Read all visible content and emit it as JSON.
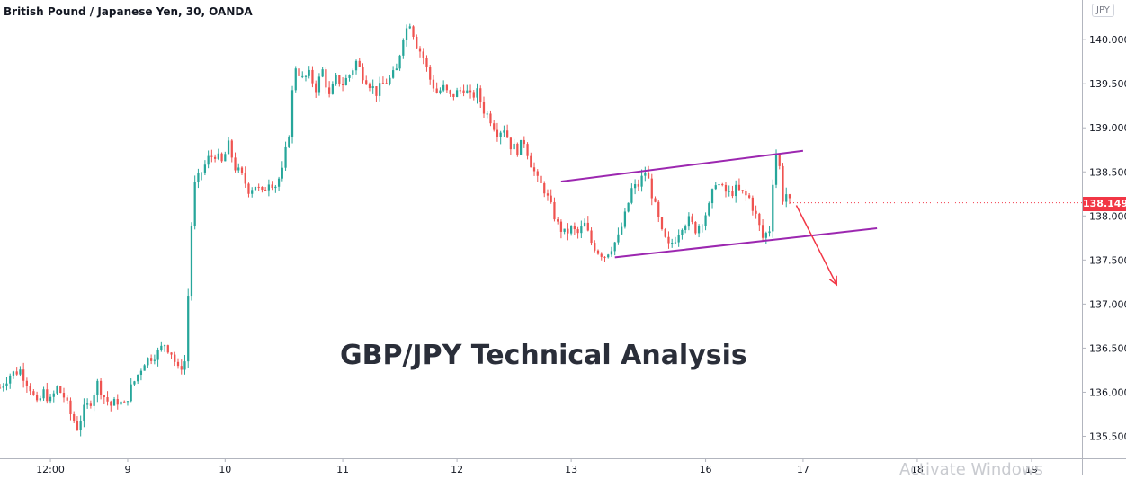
{
  "chart_data": {
    "type": "candlestick",
    "title": "British Pound / Japanese Yen, 30, OANDA",
    "annotation": "GBP/JPY Technical Analysis",
    "currency": "JPY",
    "last_price": "138.149",
    "ylim": [
      135.25,
      140.45
    ],
    "y_ticks": [
      "140.000",
      "139.500",
      "139.000",
      "138.500",
      "138.000",
      "137.500",
      "137.000",
      "136.500",
      "136.000",
      "135.500"
    ],
    "y_tick_values": [
      140.0,
      139.5,
      139.0,
      138.5,
      138.0,
      137.5,
      137.0,
      136.5,
      136.0,
      135.5
    ],
    "x_ticks": [
      {
        "label": "12:00",
        "bar": 15
      },
      {
        "label": "9",
        "bar": 38
      },
      {
        "label": "10",
        "bar": 67
      },
      {
        "label": "11",
        "bar": 102
      },
      {
        "label": "12",
        "bar": 136
      },
      {
        "label": "13",
        "bar": 170
      },
      {
        "label": "16",
        "bar": 210
      },
      {
        "label": "17",
        "bar": 239
      },
      {
        "label": "18",
        "bar": 273
      },
      {
        "label": "19",
        "bar": 307
      }
    ],
    "x_bars": [
      0,
      322
    ],
    "price_path": [
      [
        0,
        136.05
      ],
      [
        3,
        136.2
      ],
      [
        6,
        136.25
      ],
      [
        9,
        136.05
      ],
      [
        11,
        135.85
      ],
      [
        13,
        136.0
      ],
      [
        15,
        135.9
      ],
      [
        17,
        136.05
      ],
      [
        19,
        135.95
      ],
      [
        21,
        135.75
      ],
      [
        23,
        135.6
      ],
      [
        25,
        135.8
      ],
      [
        27,
        135.9
      ],
      [
        29,
        136.1
      ],
      [
        31,
        135.95
      ],
      [
        33,
        135.85
      ],
      [
        35,
        135.9
      ],
      [
        37,
        135.85
      ],
      [
        39,
        136.05
      ],
      [
        41,
        136.2
      ],
      [
        43,
        136.35
      ],
      [
        45,
        136.4
      ],
      [
        47,
        136.45
      ],
      [
        49,
        136.55
      ],
      [
        51,
        136.45
      ],
      [
        53,
        136.25
      ],
      [
        55,
        136.35
      ],
      [
        56,
        137.1
      ],
      [
        57,
        137.9
      ],
      [
        58,
        138.35
      ],
      [
        60,
        138.5
      ],
      [
        62,
        138.65
      ],
      [
        64,
        138.7
      ],
      [
        66,
        138.6
      ],
      [
        68,
        138.8
      ],
      [
        70,
        138.55
      ],
      [
        72,
        138.45
      ],
      [
        74,
        138.3
      ],
      [
        76,
        138.35
      ],
      [
        78,
        138.25
      ],
      [
        80,
        138.4
      ],
      [
        82,
        138.35
      ],
      [
        84,
        138.5
      ],
      [
        86,
        138.95
      ],
      [
        87,
        139.4
      ],
      [
        88,
        139.7
      ],
      [
        90,
        139.55
      ],
      [
        92,
        139.6
      ],
      [
        94,
        139.45
      ],
      [
        96,
        139.65
      ],
      [
        98,
        139.35
      ],
      [
        100,
        139.55
      ],
      [
        102,
        139.5
      ],
      [
        104,
        139.6
      ],
      [
        106,
        139.75
      ],
      [
        108,
        139.6
      ],
      [
        110,
        139.5
      ],
      [
        112,
        139.4
      ],
      [
        114,
        139.5
      ],
      [
        116,
        139.55
      ],
      [
        118,
        139.65
      ],
      [
        120,
        140.05
      ],
      [
        122,
        140.2
      ],
      [
        124,
        139.95
      ],
      [
        126,
        139.8
      ],
      [
        128,
        139.55
      ],
      [
        130,
        139.4
      ],
      [
        132,
        139.45
      ],
      [
        134,
        139.35
      ],
      [
        136,
        139.4
      ],
      [
        138,
        139.45
      ],
      [
        140,
        139.35
      ],
      [
        142,
        139.4
      ],
      [
        144,
        139.2
      ],
      [
        146,
        139.1
      ],
      [
        148,
        138.95
      ],
      [
        150,
        139.0
      ],
      [
        152,
        138.8
      ],
      [
        154,
        138.75
      ],
      [
        156,
        138.85
      ],
      [
        158,
        138.6
      ],
      [
        160,
        138.4
      ],
      [
        162,
        138.3
      ],
      [
        164,
        138.1
      ],
      [
        166,
        137.9
      ],
      [
        168,
        137.8
      ],
      [
        170,
        137.85
      ],
      [
        172,
        137.8
      ],
      [
        174,
        137.9
      ],
      [
        176,
        137.7
      ],
      [
        178,
        137.6
      ],
      [
        180,
        137.55
      ],
      [
        182,
        137.65
      ],
      [
        184,
        137.75
      ],
      [
        186,
        138.0
      ],
      [
        188,
        138.3
      ],
      [
        190,
        138.35
      ],
      [
        192,
        138.5
      ],
      [
        193,
        138.4
      ],
      [
        195,
        138.1
      ],
      [
        197,
        137.8
      ],
      [
        199,
        137.65
      ],
      [
        201,
        137.75
      ],
      [
        203,
        137.9
      ],
      [
        205,
        137.95
      ],
      [
        207,
        137.85
      ],
      [
        209,
        137.95
      ],
      [
        211,
        138.1
      ],
      [
        213,
        138.4
      ],
      [
        215,
        138.3
      ],
      [
        217,
        138.25
      ],
      [
        219,
        138.3
      ],
      [
        221,
        138.25
      ],
      [
        223,
        138.2
      ],
      [
        225,
        138.0
      ],
      [
        227,
        137.75
      ],
      [
        229,
        137.85
      ],
      [
        230,
        138.4
      ],
      [
        231,
        138.7
      ],
      [
        232,
        138.55
      ],
      [
        233,
        138.2
      ],
      [
        234,
        138.25
      ],
      [
        235,
        138.15
      ]
    ],
    "trendlines": [
      {
        "color": "#9c27b0",
        "x1": 167,
        "y1": 138.39,
        "x2": 239,
        "y2": 138.74
      },
      {
        "color": "#9c27b0",
        "x1": 183,
        "y1": 137.53,
        "x2": 261,
        "y2": 137.86
      }
    ],
    "arrow": {
      "color": "#f23645",
      "x1": 237,
      "y1": 138.12,
      "x2": 249,
      "y2": 137.22
    },
    "colors": {
      "up": "#26a69a",
      "down": "#ef5350",
      "channel": "#9c27b0",
      "arrow": "#f23645"
    }
  },
  "watermark": "Activate Windows"
}
